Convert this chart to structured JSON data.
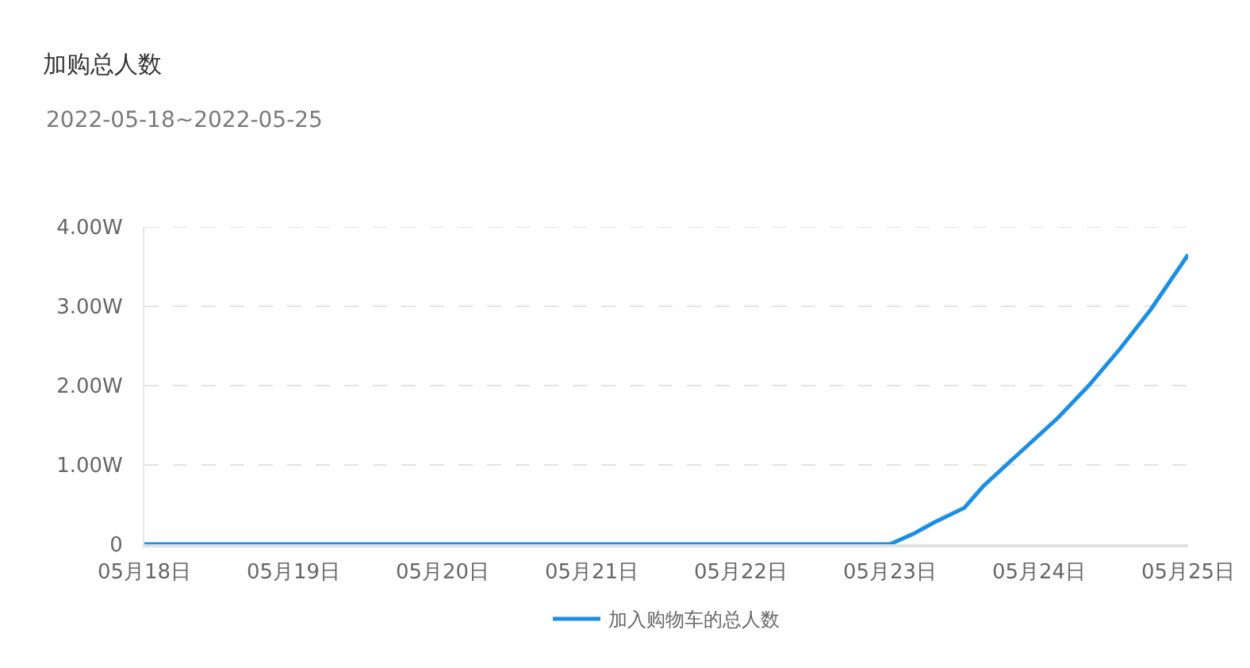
{
  "chart_data": {
    "type": "line",
    "title": "加购总人数",
    "subtitle": "2022-05-18~2022-05-25",
    "x": [
      "2022-05-18",
      "2022-05-19",
      "2022-05-20",
      "2022-05-21",
      "2022-05-22",
      "2022-05-23",
      "2022-05-23T04:00",
      "2022-05-23T07:00",
      "2022-05-23T12:00",
      "2022-05-23T15:00",
      "2022-05-23T20:00",
      "2022-05-24T03:00",
      "2022-05-24T08:00",
      "2022-05-24T13:00",
      "2022-05-24T18:00",
      "2022-05-25"
    ],
    "series": [
      {
        "name": "加入购物车的总人数",
        "color": "#1a8fe3",
        "values": [
          0,
          0,
          0,
          0,
          0,
          0,
          0.14,
          0.27,
          0.46,
          0.73,
          1.09,
          1.59,
          2.0,
          2.46,
          2.96,
          3.65
        ]
      }
    ],
    "xlim": [
      "2022-05-18",
      "2022-05-25"
    ],
    "xticks": [
      {
        "value": "2022-05-18",
        "label": "05月18日"
      },
      {
        "value": "2022-05-19",
        "label": "05月19日"
      },
      {
        "value": "2022-05-20",
        "label": "05月20日"
      },
      {
        "value": "2022-05-21",
        "label": "05月21日"
      },
      {
        "value": "2022-05-22",
        "label": "05月22日"
      },
      {
        "value": "2022-05-23",
        "label": "05月23日"
      },
      {
        "value": "2022-05-24",
        "label": "05月24日"
      },
      {
        "value": "2022-05-25",
        "label": "05月25日"
      }
    ],
    "ylim": [
      0,
      4
    ],
    "yticks": [
      0,
      {
        "value": 1,
        "label": "1.00W"
      },
      {
        "value": 2,
        "label": "2.00W"
      },
      {
        "value": 3,
        "label": "3.00W"
      },
      {
        "value": 4,
        "label": "4.00W"
      }
    ],
    "grid": "y",
    "legend": "bottom",
    "marker": "none",
    "line_style": "solid"
  }
}
